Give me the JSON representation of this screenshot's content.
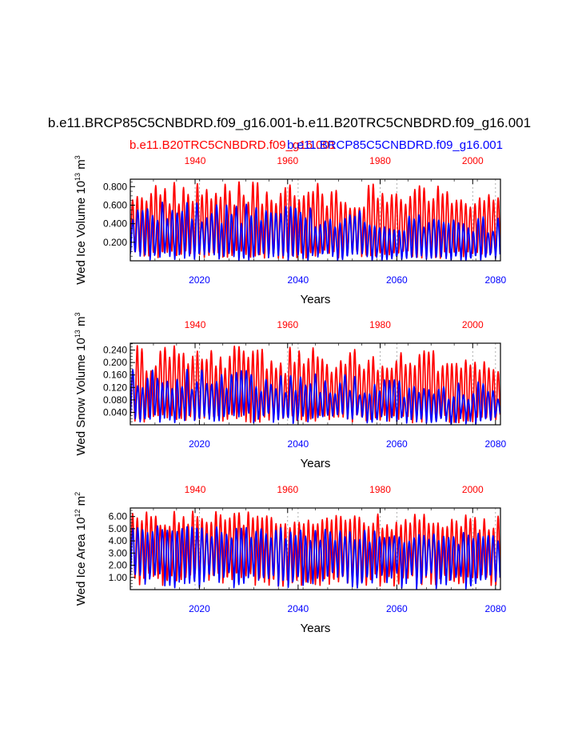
{
  "title": "b.e11.BRCP85C5CNBDRD.f09_g16.001-b.e11.B20TRC5CNBDRD.f09_g16.001",
  "legend": {
    "red_case": "b.e11.B20TRC5CNBDRD.f09_g16.001",
    "blue_case": "b.e11.BRCP85C5CNBDRD.f09_g16.001",
    "red_color": "#ff0000",
    "blue_color": "#0000ff"
  },
  "chart_data": [
    {
      "type": "line",
      "ylabel_text": "Wed Ice Volume 10",
      "ylabel_exp": "13",
      "ylabel_unit": " m",
      "ylabel_unit_exp": "3",
      "xlabel": "Years",
      "ylim": [
        0.0,
        0.88
      ],
      "yticks": [
        0.2,
        0.4,
        0.6,
        0.8
      ],
      "ytick_labels": [
        "0.200",
        "0.400",
        "0.600",
        "0.800"
      ],
      "bottom_axis": {
        "range": [
          2006,
          2081
        ],
        "ticks": [
          2020,
          2040,
          2060,
          2080
        ],
        "labels": [
          "2020",
          "2040",
          "2060",
          "2080"
        ],
        "color": "#0000ff"
      },
      "top_axis": {
        "range": [
          1926,
          2006
        ],
        "ticks": [
          1940,
          1960,
          1980,
          2000
        ],
        "labels": [
          "1940",
          "1960",
          "1980",
          "2000"
        ],
        "color": "#ff0000"
      },
      "series": [
        {
          "name": "b.e11.B20TRC5CNBDRD.f09_g16.001",
          "color": "#ff0000",
          "axis": "top",
          "cycles": 80,
          "min_range": [
            0.03,
            0.12
          ],
          "max_range": [
            0.6,
            0.87
          ],
          "trend": -0.06
        },
        {
          "name": "b.e11.BRCP85C5CNBDRD.f09_g16.001",
          "color": "#0000ff",
          "axis": "bottom",
          "cycles": 75,
          "min_range": [
            0.01,
            0.1
          ],
          "max_range": [
            0.44,
            0.66
          ],
          "trend": -0.16
        }
      ]
    },
    {
      "type": "line",
      "ylabel_text": "Wed Snow Volume 10",
      "ylabel_exp": "13",
      "ylabel_unit": " m",
      "ylabel_unit_exp": "3",
      "xlabel": "Years",
      "ylim": [
        0.0,
        0.262
      ],
      "yticks": [
        0.04,
        0.08,
        0.12,
        0.16,
        0.2,
        0.24
      ],
      "ytick_labels": [
        "0.040",
        "0.080",
        "0.120",
        "0.160",
        "0.200",
        "0.240"
      ],
      "bottom_axis": {
        "range": [
          2006,
          2081
        ],
        "ticks": [
          2020,
          2040,
          2060,
          2080
        ],
        "labels": [
          "2020",
          "2040",
          "2060",
          "2080"
        ],
        "color": "#0000ff"
      },
      "top_axis": {
        "range": [
          1926,
          2006
        ],
        "ticks": [
          1940,
          1960,
          1980,
          2000
        ],
        "labels": [
          "1940",
          "1960",
          "1980",
          "2000"
        ],
        "color": "#ff0000"
      },
      "series": [
        {
          "name": "b.e11.B20TRC5CNBDRD.f09_g16.001",
          "color": "#ff0000",
          "axis": "top",
          "cycles": 80,
          "min_range": [
            0.008,
            0.035
          ],
          "max_range": [
            0.17,
            0.26
          ],
          "trend": -0.02
        },
        {
          "name": "b.e11.BRCP85C5CNBDRD.f09_g16.001",
          "color": "#0000ff",
          "axis": "bottom",
          "cycles": 75,
          "min_range": [
            0.006,
            0.04
          ],
          "max_range": [
            0.12,
            0.19
          ],
          "trend": -0.045
        }
      ]
    },
    {
      "type": "line",
      "ylabel_text": "Wed Ice Area 10",
      "ylabel_exp": "12",
      "ylabel_unit": " m",
      "ylabel_unit_exp": "2",
      "xlabel": "Years",
      "ylim": [
        0.0,
        6.7
      ],
      "yticks": [
        1.0,
        2.0,
        3.0,
        4.0,
        5.0,
        6.0
      ],
      "ytick_labels": [
        "1.00",
        "2.00",
        "3.00",
        "4.00",
        "5.00",
        "6.00"
      ],
      "bottom_axis": {
        "range": [
          2006,
          2081
        ],
        "ticks": [
          2020,
          2040,
          2060,
          2080
        ],
        "labels": [
          "2020",
          "2040",
          "2060",
          "2080"
        ],
        "color": "#0000ff"
      },
      "top_axis": {
        "range": [
          1926,
          2006
        ],
        "ticks": [
          1940,
          1960,
          1980,
          2000
        ],
        "labels": [
          "1940",
          "1960",
          "1980",
          "2000"
        ],
        "color": "#ff0000"
      },
      "series": [
        {
          "name": "b.e11.B20TRC5CNBDRD.f09_g16.001",
          "color": "#ff0000",
          "axis": "top",
          "cycles": 80,
          "min_range": [
            0.3,
            1.4
          ],
          "max_range": [
            5.2,
            6.5
          ],
          "trend": -0.4
        },
        {
          "name": "b.e11.BRCP85C5CNBDRD.f09_g16.001",
          "color": "#0000ff",
          "axis": "bottom",
          "cycles": 75,
          "min_range": [
            0.15,
            1.5
          ],
          "max_range": [
            4.4,
            5.4
          ],
          "trend": -0.8
        }
      ]
    }
  ]
}
